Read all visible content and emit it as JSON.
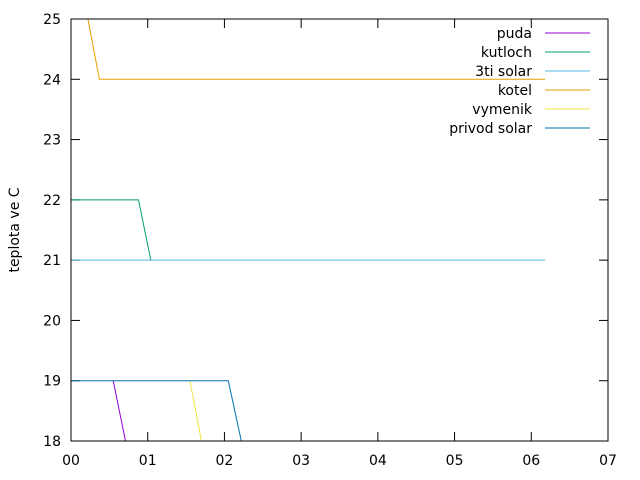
{
  "chart_data": {
    "type": "line",
    "title": "",
    "xlabel": "",
    "ylabel": "teplota ve C",
    "xlim": [
      0,
      7
    ],
    "ylim": [
      18,
      25
    ],
    "xticks": [
      0,
      1,
      2,
      3,
      4,
      5,
      6,
      7
    ],
    "xtick_labels": [
      "00",
      "01",
      "02",
      "03",
      "04",
      "05",
      "06",
      "07"
    ],
    "yticks": [
      18,
      19,
      20,
      21,
      22,
      23,
      24,
      25
    ],
    "ytick_labels": [
      "18",
      "19",
      "20",
      "21",
      "22",
      "23",
      "24",
      "25"
    ],
    "grid": false,
    "legend_position": "top-right",
    "series": [
      {
        "name": "puda",
        "color": "#9400d3",
        "points": [
          [
            0.55,
            19
          ],
          [
            0.71,
            18
          ]
        ]
      },
      {
        "name": "kutloch",
        "color": "#009e73",
        "points": [
          [
            0.0,
            22
          ],
          [
            0.88,
            22
          ],
          [
            1.04,
            21
          ]
        ]
      },
      {
        "name": "3ti solar",
        "color": "#56b4e9",
        "points": [
          [
            0.0,
            21
          ],
          [
            6.18,
            21
          ]
        ]
      },
      {
        "name": "kotel",
        "color": "#e69f00",
        "points": [
          [
            0.22,
            25
          ],
          [
            0.37,
            24
          ],
          [
            6.18,
            24
          ]
        ]
      },
      {
        "name": "vymenik",
        "color": "#f0e442",
        "points": [
          [
            1.55,
            19
          ],
          [
            1.7,
            18
          ]
        ]
      },
      {
        "name": "privod solar",
        "color": "#0072b2",
        "points": [
          [
            0.0,
            19
          ],
          [
            2.05,
            19
          ],
          [
            2.22,
            18
          ]
        ]
      }
    ]
  }
}
